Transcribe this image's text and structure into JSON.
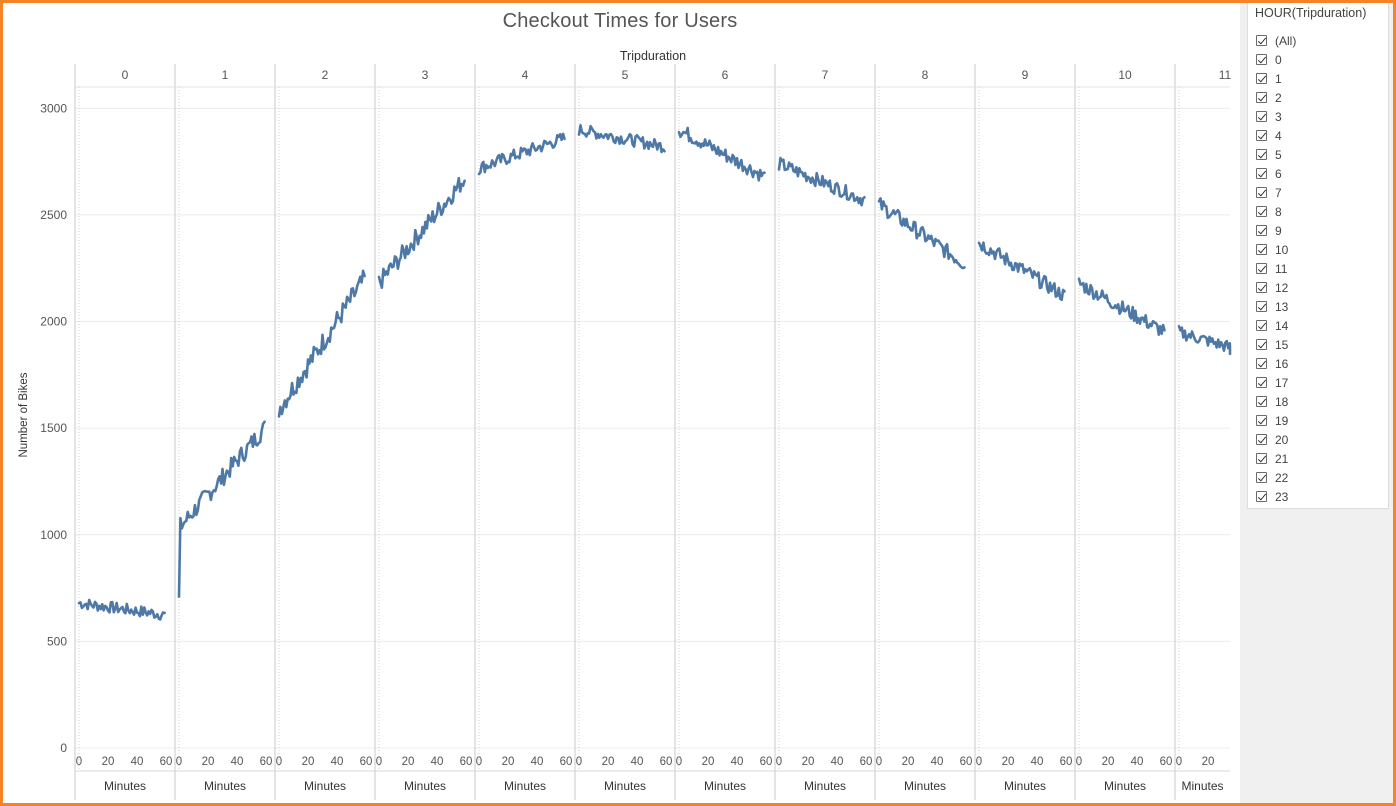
{
  "chart_data": {
    "type": "line",
    "title": "Checkout Times for Users",
    "column_header_title": "Tripduration",
    "ylabel": "Number of Bikes",
    "xlabel": "Minutes",
    "ylim": [
      0,
      3100
    ],
    "y_ticks": [
      0,
      500,
      1000,
      1500,
      2000,
      2500,
      3000
    ],
    "x_ticks": [
      0,
      20,
      40,
      60
    ],
    "x_ticks_last_panel": [
      0,
      20
    ],
    "panels": [
      "0",
      "1",
      "2",
      "3",
      "4",
      "5",
      "6",
      "7",
      "8",
      "9",
      "10",
      "11"
    ],
    "series_color": "#4e79a7",
    "series": [
      {
        "panel": "0",
        "start": 680,
        "end": 625
      },
      {
        "panel": "1",
        "start": 1030,
        "end": 1500,
        "first_point": 710
      },
      {
        "panel": "2",
        "start": 1590,
        "end": 2200
      },
      {
        "panel": "3",
        "start": 2180,
        "end": 2670
      },
      {
        "panel": "4",
        "start": 2720,
        "end": 2860
      },
      {
        "panel": "5",
        "start": 2900,
        "end": 2820
      },
      {
        "panel": "6",
        "start": 2900,
        "end": 2680
      },
      {
        "panel": "7",
        "start": 2740,
        "end": 2570
      },
      {
        "panel": "8",
        "start": 2550,
        "end": 2270
      },
      {
        "panel": "9",
        "start": 2370,
        "end": 2120
      },
      {
        "panel": "10",
        "start": 2180,
        "end": 1950
      },
      {
        "panel": "11",
        "start": 1950,
        "end": 1830
      }
    ],
    "grid": "horizontal"
  },
  "filter": {
    "title": "HOUR(Tripduration)",
    "items": [
      "(All)",
      "0",
      "1",
      "2",
      "3",
      "4",
      "5",
      "6",
      "7",
      "8",
      "9",
      "10",
      "11",
      "12",
      "13",
      "14",
      "15",
      "16",
      "17",
      "18",
      "19",
      "20",
      "21",
      "22",
      "23"
    ]
  }
}
